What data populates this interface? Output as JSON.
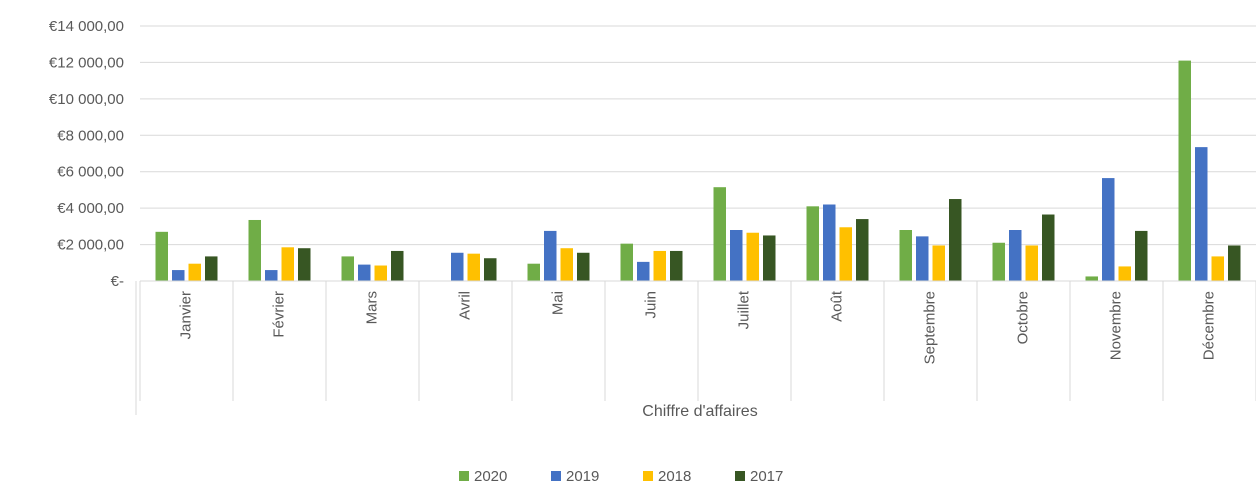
{
  "chart_data": {
    "type": "bar",
    "categories": [
      "Janvier",
      "Février",
      "Mars",
      "Avril",
      "Mai",
      "Juin",
      "Juillet",
      "Août",
      "Septembre",
      "Octobre",
      "Novembre",
      "Décembre"
    ],
    "xlabel": "Chiffre d'affaires",
    "ylim": [
      0,
      14000
    ],
    "yticks": [
      {
        "value": 0,
        "label": "€-"
      },
      {
        "value": 2000,
        "label": "€2 000,00"
      },
      {
        "value": 4000,
        "label": "€4 000,00"
      },
      {
        "value": 6000,
        "label": "€6 000,00"
      },
      {
        "value": 8000,
        "label": "€8 000,00"
      },
      {
        "value": 10000,
        "label": "€10 000,00"
      },
      {
        "value": 12000,
        "label": "€12 000,00"
      },
      {
        "value": 14000,
        "label": "€14 000,00"
      }
    ],
    "grid": true,
    "legend_position": "bottom",
    "series": [
      {
        "name": "2020",
        "color": "#70ad47",
        "values": [
          2700,
          3350,
          1350,
          0,
          950,
          2050,
          5150,
          4100,
          2800,
          2100,
          250,
          12100
        ]
      },
      {
        "name": "2019",
        "color": "#4472c4",
        "values": [
          600,
          600,
          900,
          1550,
          2750,
          1050,
          2800,
          4200,
          2450,
          2800,
          5650,
          7350
        ]
      },
      {
        "name": "2018",
        "color": "#ffc000",
        "values": [
          950,
          1850,
          850,
          1500,
          1800,
          1650,
          2650,
          2950,
          1950,
          1950,
          800,
          1350
        ]
      },
      {
        "name": "2017",
        "color": "#375623",
        "values": [
          1350,
          1800,
          1650,
          1250,
          1550,
          1650,
          2500,
          3400,
          4500,
          3650,
          2750,
          1950
        ]
      }
    ]
  }
}
